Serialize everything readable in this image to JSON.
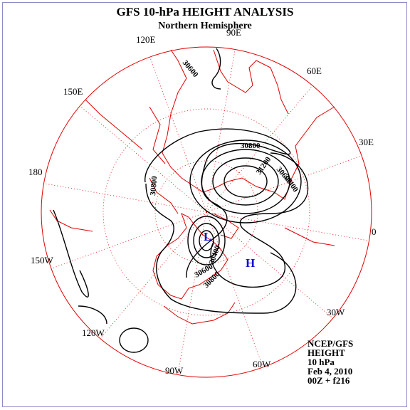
{
  "header": {
    "title": "GFS 10-hPa HEIGHT ANALYSIS",
    "subtitle": "Northern Hemisphere"
  },
  "longitude_labels": [
    "90E",
    "60E",
    "30E",
    "0",
    "30W",
    "60W",
    "90W",
    "120W",
    "150W",
    "180",
    "150E",
    "120E"
  ],
  "contour_labels": [
    "30600",
    "30800",
    "30800",
    "30600",
    "31200",
    "30400",
    "30400",
    "30600",
    "30800"
  ],
  "pressure_centers": [
    "L",
    "H"
  ],
  "info": [
    "NCEP/GFS",
    "HEIGHT",
    "10 hPa",
    "Feb 4, 2010",
    "00Z + f216"
  ]
}
